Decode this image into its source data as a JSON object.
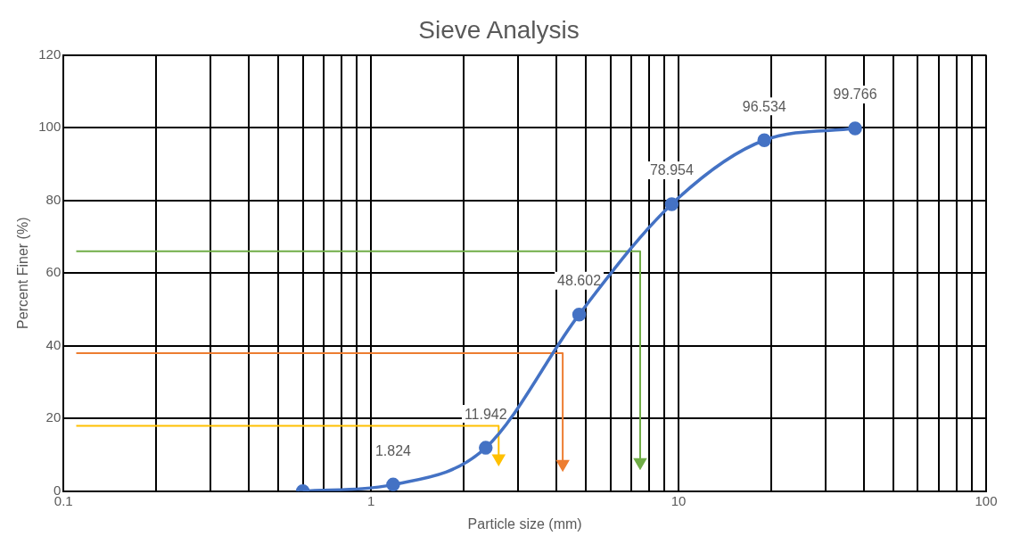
{
  "chart_data": {
    "type": "line",
    "title": "Sieve Analysis",
    "xlabel": "Particle size (mm)",
    "ylabel": "Percent Finer (%)",
    "log": "x",
    "xlim": [
      0.1,
      100
    ],
    "xticks": [
      0.1,
      {
        "value": 0.2,
        "label": null
      },
      {
        "value": 0.3,
        "label": null
      },
      {
        "value": 0.4,
        "label": null
      },
      {
        "value": 0.5,
        "label": null
      },
      {
        "value": 0.6,
        "label": null
      },
      {
        "value": 0.7,
        "label": null
      },
      {
        "value": 0.8,
        "label": null
      },
      {
        "value": 0.9,
        "label": null
      },
      1,
      {
        "value": 2,
        "label": null
      },
      {
        "value": 3,
        "label": null
      },
      {
        "value": 4,
        "label": null
      },
      {
        "value": 5,
        "label": null
      },
      {
        "value": 6,
        "label": null
      },
      {
        "value": 7,
        "label": null
      },
      {
        "value": 8,
        "label": null
      },
      {
        "value": 9,
        "label": null
      },
      10,
      {
        "value": 20,
        "label": null
      },
      {
        "value": 30,
        "label": null
      },
      {
        "value": 40,
        "label": null
      },
      {
        "value": 50,
        "label": null
      },
      {
        "value": 60,
        "label": null
      },
      {
        "value": 70,
        "label": null
      },
      {
        "value": 80,
        "label": null
      },
      {
        "value": 90,
        "label": null
      },
      100
    ],
    "ylim": [
      0,
      120
    ],
    "yticks": [
      0,
      20,
      40,
      60,
      80,
      100,
      120
    ],
    "grid": true,
    "marker": "circle",
    "line_style": "solid",
    "series": [
      {
        "color": "#4472c4",
        "x": [
          0.6,
          1.18,
          2.36,
          4.75,
          9.5,
          19,
          37.5
        ],
        "values": [
          0,
          1.824,
          11.942,
          48.602,
          78.954,
          96.534,
          99.766
        ],
        "value_labels": [
          null,
          "1.824",
          "11.942",
          "48.602",
          "78.954",
          "96.534",
          "99.766"
        ]
      },
      {
        "color": "#70ad47",
        "marker": "none",
        "x": [
          0.11,
          7.5,
          7.5
        ],
        "values": [
          66,
          66,
          8
        ]
      },
      {
        "color": "#ed7d31",
        "marker": "none",
        "x": [
          0.11,
          4.2,
          4.2
        ],
        "values": [
          38,
          38,
          7.5
        ]
      },
      {
        "color": "#ffc000",
        "marker": "none",
        "x": [
          0.11,
          2.6,
          2.6
        ],
        "values": [
          18,
          18,
          9
        ]
      }
    ]
  }
}
